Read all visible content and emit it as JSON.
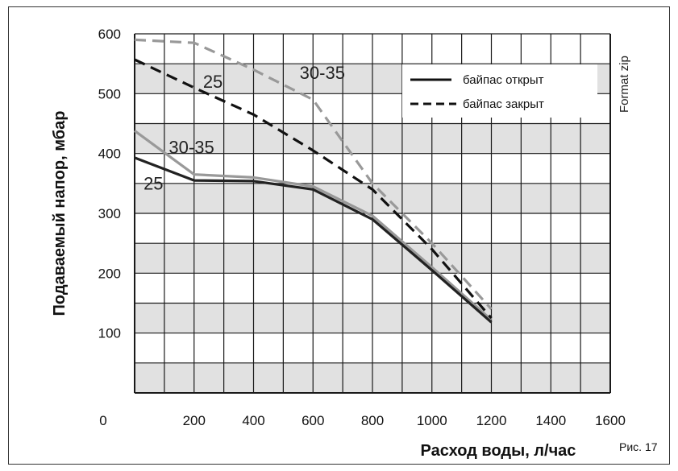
{
  "chart_data": {
    "type": "line",
    "xlabel": "Расход воды, л/час",
    "ylabel": "Подаваемый напор, мбар",
    "xlim": [
      0,
      1600
    ],
    "ylim": [
      0,
      600
    ],
    "x_ticks": [
      "0",
      "200",
      "400",
      "600",
      "800",
      "1000",
      "1200",
      "1400",
      "1600"
    ],
    "y_ticks": [
      "100",
      "200",
      "300",
      "400",
      "500",
      "600"
    ],
    "grid": true,
    "legend": {
      "position": "top-right",
      "entries": [
        {
          "label": "байпас открыт",
          "style": "solid"
        },
        {
          "label": "байпас закрыт",
          "style": "dashed"
        }
      ]
    },
    "series": [
      {
        "name": "25",
        "style": "solid",
        "color": "#222222",
        "points": [
          [
            0,
            393
          ],
          [
            200,
            355
          ],
          [
            400,
            354
          ],
          [
            600,
            340
          ],
          [
            800,
            290
          ],
          [
            1000,
            205
          ],
          [
            1200,
            118
          ]
        ]
      },
      {
        "name": "30-35",
        "style": "solid",
        "color": "#999999",
        "points": [
          [
            0,
            438
          ],
          [
            200,
            365
          ],
          [
            400,
            360
          ],
          [
            600,
            345
          ],
          [
            800,
            296
          ],
          [
            1000,
            210
          ],
          [
            1200,
            122
          ]
        ]
      },
      {
        "name": "25",
        "style": "dashed",
        "color": "#111111",
        "points": [
          [
            0,
            557
          ],
          [
            200,
            510
          ],
          [
            400,
            465
          ],
          [
            600,
            405
          ],
          [
            800,
            340
          ],
          [
            1000,
            240
          ],
          [
            1200,
            125
          ]
        ]
      },
      {
        "name": "30-35",
        "style": "dashed",
        "color": "#999999",
        "points": [
          [
            0,
            590
          ],
          [
            200,
            585
          ],
          [
            400,
            540
          ],
          [
            600,
            490
          ],
          [
            800,
            350
          ],
          [
            1000,
            250
          ],
          [
            1200,
            140
          ]
        ]
      }
    ],
    "annotations": [
      "25",
      "30-35",
      "25",
      "30-35"
    ]
  },
  "side_label": "Format zip",
  "figure_label": "Рис. 17",
  "colors": {
    "band": "#e1e1e1",
    "grid": "#1a1a1a",
    "bg": "#ffffff"
  }
}
